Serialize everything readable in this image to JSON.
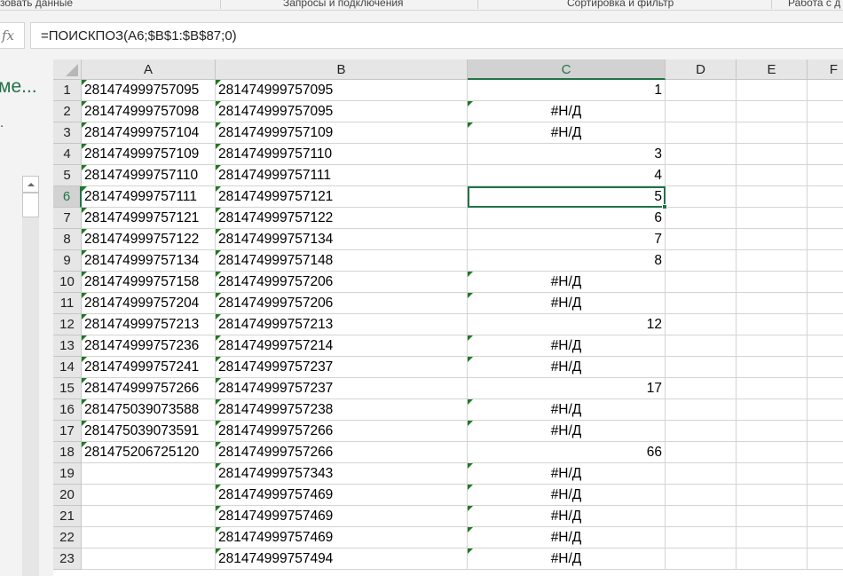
{
  "ribbon": {
    "groups": [
      "зовать данные",
      "Запросы и подключения",
      "Сортировка и фильтр",
      "Работа с д"
    ]
  },
  "formula_bar": {
    "fx_label": "fx",
    "formula": "=ПОИСКПОЗ(A6;$B$1:$B$87;0)"
  },
  "side_pane": {
    "title": "ме...",
    "text": "."
  },
  "sheet": {
    "columns": [
      "A",
      "B",
      "C",
      "D",
      "E",
      "F"
    ],
    "selected_column": "C",
    "selected_row": 6,
    "active_cell": "C6",
    "rows": [
      {
        "n": "1",
        "a": "281474999757095",
        "b": "281474999757095",
        "c": "1"
      },
      {
        "n": "2",
        "a": "281474999757098",
        "b": "281474999757095",
        "c": "#Н/Д"
      },
      {
        "n": "3",
        "a": "281474999757104",
        "b": "281474999757109",
        "c": "#Н/Д"
      },
      {
        "n": "4",
        "a": "281474999757109",
        "b": "281474999757110",
        "c": "3"
      },
      {
        "n": "5",
        "a": "281474999757110",
        "b": "281474999757111",
        "c": "4"
      },
      {
        "n": "6",
        "a": "281474999757111",
        "b": "281474999757121",
        "c": "5"
      },
      {
        "n": "7",
        "a": "281474999757121",
        "b": "281474999757122",
        "c": "6"
      },
      {
        "n": "8",
        "a": "281474999757122",
        "b": "281474999757134",
        "c": "7"
      },
      {
        "n": "9",
        "a": "281474999757134",
        "b": "281474999757148",
        "c": "8"
      },
      {
        "n": "10",
        "a": "281474999757158",
        "b": "281474999757206",
        "c": "#Н/Д"
      },
      {
        "n": "11",
        "a": "281474999757204",
        "b": "281474999757206",
        "c": "#Н/Д"
      },
      {
        "n": "12",
        "a": "281474999757213",
        "b": "281474999757213",
        "c": "12"
      },
      {
        "n": "13",
        "a": "281474999757236",
        "b": "281474999757214",
        "c": "#Н/Д"
      },
      {
        "n": "14",
        "a": "281474999757241",
        "b": "281474999757237",
        "c": "#Н/Д"
      },
      {
        "n": "15",
        "a": "281474999757266",
        "b": "281474999757237",
        "c": "17"
      },
      {
        "n": "16",
        "a": "281475039073588",
        "b": "281474999757238",
        "c": "#Н/Д"
      },
      {
        "n": "17",
        "a": "281475039073591",
        "b": "281474999757266",
        "c": "#Н/Д"
      },
      {
        "n": "18",
        "a": "281475206725120",
        "b": "281474999757266",
        "c": "66"
      },
      {
        "n": "19",
        "a": "",
        "b": "281474999757343",
        "c": "#Н/Д"
      },
      {
        "n": "20",
        "a": "",
        "b": "281474999757469",
        "c": "#Н/Д"
      },
      {
        "n": "21",
        "a": "",
        "b": "281474999757469",
        "c": "#Н/Д"
      },
      {
        "n": "22",
        "a": "",
        "b": "281474999757469",
        "c": "#Н/Д"
      },
      {
        "n": "23",
        "a": "",
        "b": "281474999757494",
        "c": "#Н/Д"
      }
    ]
  },
  "colors": {
    "accent": "#217346",
    "error_triangle": "#1e7a1e"
  }
}
